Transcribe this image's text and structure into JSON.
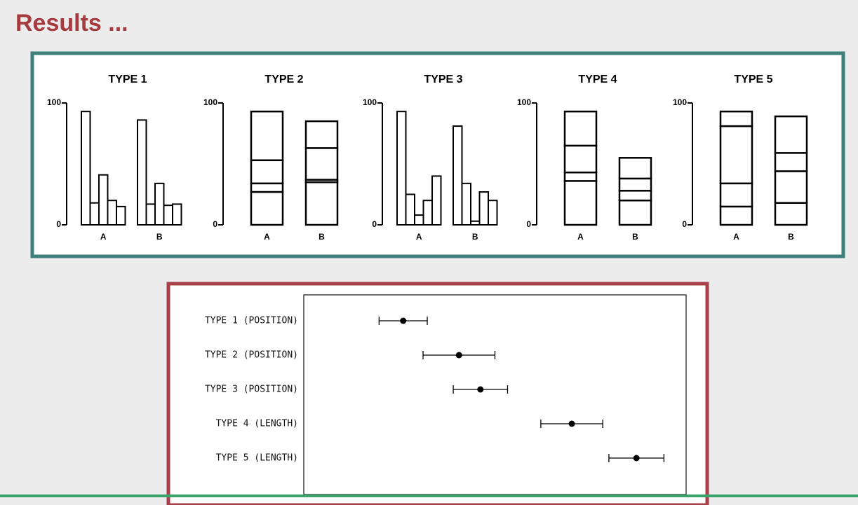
{
  "title": "Results ...",
  "chart_data": [
    {
      "type": "grouped_bar",
      "title": "TYPE 1",
      "categories": [
        "A",
        "B"
      ],
      "series": [
        {
          "values": [
            93,
            86
          ]
        },
        {
          "values": [
            18,
            17
          ]
        },
        {
          "values": [
            41,
            34
          ]
        },
        {
          "values": [
            20,
            16
          ]
        },
        {
          "values": [
            15,
            17
          ]
        }
      ],
      "ylim": [
        0,
        100
      ],
      "yticks": [
        0,
        100
      ],
      "color": "#000000"
    },
    {
      "type": "stacked_bar",
      "title": "TYPE 2",
      "categories": [
        "A",
        "B"
      ],
      "series": [
        {
          "values": [
            27,
            35
          ]
        },
        {
          "values": [
            7,
            2
          ]
        },
        {
          "values": [
            19,
            26
          ]
        },
        {
          "values": [
            40,
            22
          ]
        }
      ],
      "ylim": [
        0,
        100
      ],
      "yticks": [
        0,
        100
      ],
      "color": "#000000"
    },
    {
      "type": "grouped_bar",
      "title": "TYPE 3",
      "categories": [
        "A",
        "B"
      ],
      "series": [
        {
          "values": [
            93,
            81
          ]
        },
        {
          "values": [
            25,
            34
          ]
        },
        {
          "values": [
            8,
            3
          ]
        },
        {
          "values": [
            20,
            27
          ]
        },
        {
          "values": [
            40,
            20
          ]
        }
      ],
      "ylim": [
        0,
        100
      ],
      "yticks": [
        0,
        100
      ],
      "color": "#000000"
    },
    {
      "type": "stacked_bar",
      "title": "TYPE 4",
      "categories": [
        "A",
        "B"
      ],
      "series": [
        {
          "values": [
            36,
            20
          ]
        },
        {
          "values": [
            7,
            8
          ]
        },
        {
          "values": [
            22,
            10
          ]
        },
        {
          "values": [
            28,
            17
          ]
        }
      ],
      "ylim": [
        0,
        100
      ],
      "yticks": [
        0,
        100
      ],
      "color": "#000000"
    },
    {
      "type": "stacked_bar",
      "title": "TYPE 5",
      "categories": [
        "A",
        "B"
      ],
      "series": [
        {
          "values": [
            15,
            18
          ]
        },
        {
          "values": [
            19,
            26
          ]
        },
        {
          "values": [
            47,
            15
          ]
        },
        {
          "values": [
            12,
            30
          ]
        }
      ],
      "ylim": [
        0,
        100
      ],
      "yticks": [
        0,
        100
      ],
      "color": "#000000"
    },
    {
      "type": "dot_error",
      "categories": [
        "TYPE 1 (POSITION)",
        "TYPE 2 (POSITION)",
        "TYPE 3 (POSITION)",
        "TYPE 4 (LENGTH)",
        "TYPE 5 (LENGTH)"
      ],
      "values": [
        26,
        40.6,
        46.2,
        70.1,
        87
      ],
      "errors": [
        6.3,
        9.4,
        7.1,
        8.1,
        7.2
      ],
      "xlim": [
        0,
        100
      ],
      "color": "#000000"
    }
  ]
}
